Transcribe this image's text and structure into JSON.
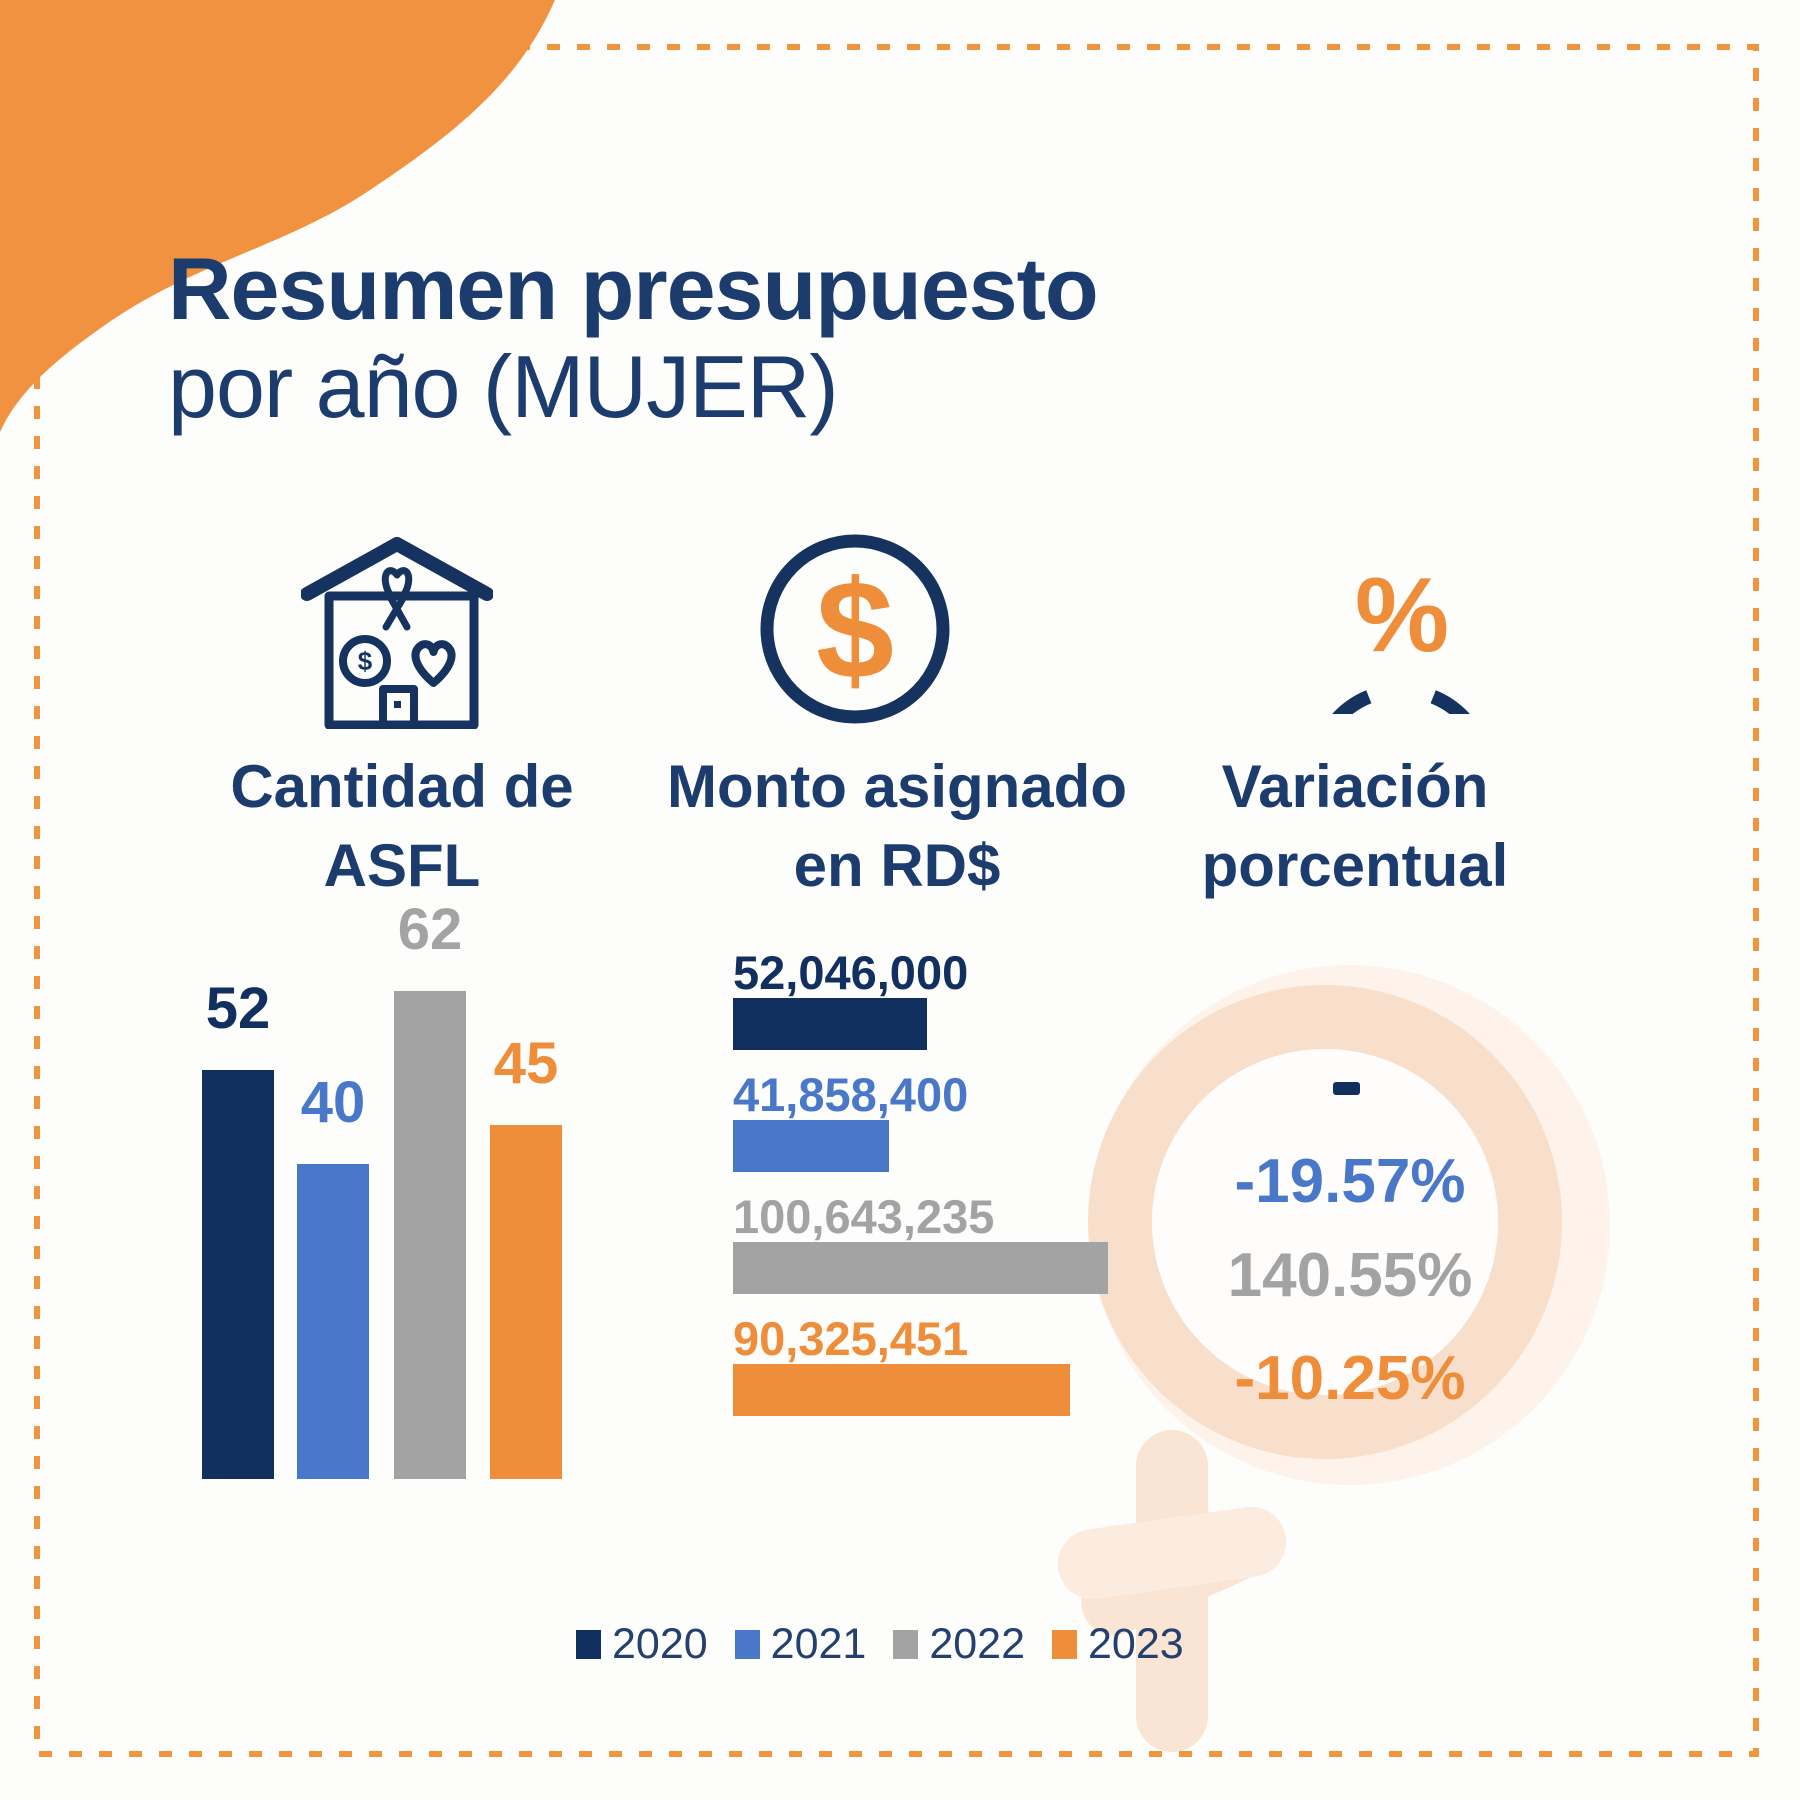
{
  "title": {
    "line1": "Resumen presupuesto",
    "line2": "por año (MUJER)"
  },
  "columns": [
    {
      "icon": "charity-house-icon",
      "label_line1": "Cantidad de",
      "label_line2": "ASFL"
    },
    {
      "icon": "dollar-circle-icon",
      "label_line1": "Monto asignado",
      "label_line2": "en RD$"
    },
    {
      "icon": "percent-circle-icon",
      "label_line1": "Variación",
      "label_line2": "porcentual"
    }
  ],
  "years": [
    {
      "year": "2020",
      "color": "#12305f"
    },
    {
      "year": "2021",
      "color": "#4a78c8"
    },
    {
      "year": "2022",
      "color": "#a3a3a3"
    },
    {
      "year": "2023",
      "color": "#ee8d3a"
    }
  ],
  "chart_data": [
    {
      "type": "bar",
      "orientation": "vertical",
      "title": "Cantidad de ASFL",
      "categories": [
        "2020",
        "2021",
        "2022",
        "2023"
      ],
      "values": [
        52,
        40,
        62,
        45
      ],
      "data_labels": [
        "52",
        "40",
        "62",
        "45"
      ],
      "ylim": [
        0,
        62
      ],
      "grid": false,
      "legend_position": "bottom"
    },
    {
      "type": "bar",
      "orientation": "horizontal",
      "title": "Monto asignado en RD$",
      "categories": [
        "2020",
        "2021",
        "2022",
        "2023"
      ],
      "values": [
        52046000,
        41858400,
        100643235,
        90325451
      ],
      "data_labels": [
        "52,046,000",
        "41,858,400",
        "100,643,235",
        "90,325,451"
      ],
      "xlim": [
        0,
        100643235
      ],
      "grid": false,
      "legend_position": "bottom"
    },
    {
      "type": "table",
      "title": "Variación porcentual",
      "categories": [
        "2020",
        "2021",
        "2022",
        "2023"
      ],
      "values": [
        "-",
        "-19.57%",
        "140.55%",
        "-10.25%"
      ]
    }
  ],
  "icons": {
    "dollar_symbol": "$",
    "percent_symbol": "%",
    "coin_letter": "$"
  },
  "colors": {
    "navy": "#12305f",
    "blue": "#4a78c8",
    "gray": "#a3a3a3",
    "orange": "#ee8d3a",
    "title_navy": "#1d3c6e",
    "icon_navy": "#16335f",
    "blob_orange": "#f0923f",
    "dashed_border": "#ef953e",
    "watermark_disc": "#fdf3ea",
    "watermark_ring": "#f8dfcc",
    "watermark_stem": "#fae5d4",
    "watermark_bar": "#fcecdf"
  }
}
